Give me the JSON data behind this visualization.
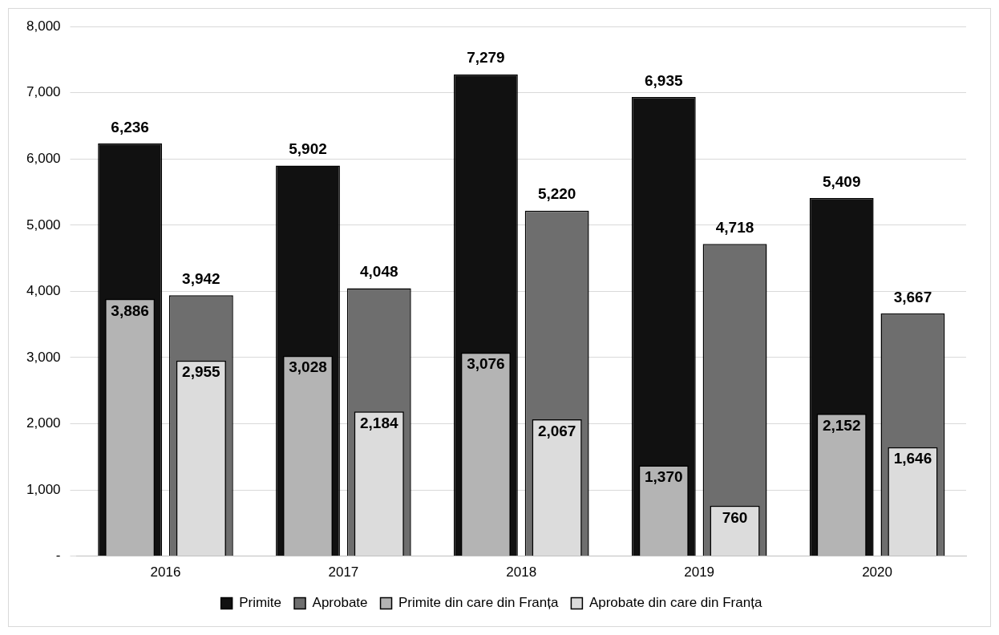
{
  "chart_data": {
    "type": "bar",
    "categories": [
      "2016",
      "2017",
      "2018",
      "2019",
      "2020"
    ],
    "series": [
      {
        "name": "Primite",
        "color": "#111111",
        "values": [
          6236,
          5902,
          7279,
          6935,
          5409
        ],
        "value_labels": [
          "6,236",
          "5,902",
          "7,279",
          "6,935",
          "5,409"
        ]
      },
      {
        "name": "Aprobate",
        "color": "#6e6e6e",
        "values": [
          3942,
          4048,
          5220,
          4718,
          3667
        ],
        "value_labels": [
          "3,942",
          "4,048",
          "5,220",
          "4,718",
          "3,667"
        ]
      },
      {
        "name": "Primite din care din Franța",
        "color": "#b4b4b4",
        "values": [
          3886,
          3028,
          3076,
          1370,
          2152
        ],
        "value_labels": [
          "3,886",
          "3,028",
          "3,076",
          "1,370",
          "2,152"
        ]
      },
      {
        "name": "Aprobate din care din Franța",
        "color": "#dcdcdc",
        "values": [
          2955,
          2184,
          2067,
          760,
          1646
        ],
        "value_labels": [
          "2,955",
          "2,184",
          "2,067",
          "760",
          "1,646"
        ]
      }
    ],
    "ylim": [
      0,
      8000
    ],
    "yticks": [
      {
        "value": 0,
        "label": "-"
      },
      {
        "value": 1000,
        "label": "1,000"
      },
      {
        "value": 2000,
        "label": "2,000"
      },
      {
        "value": 3000,
        "label": "3,000"
      },
      {
        "value": 4000,
        "label": "4,000"
      },
      {
        "value": 5000,
        "label": "5,000"
      },
      {
        "value": 6000,
        "label": "6,000"
      },
      {
        "value": 7000,
        "label": "7,000"
      },
      {
        "value": 8000,
        "label": "8,000"
      }
    ],
    "grid": "y",
    "legend": "bottom"
  }
}
